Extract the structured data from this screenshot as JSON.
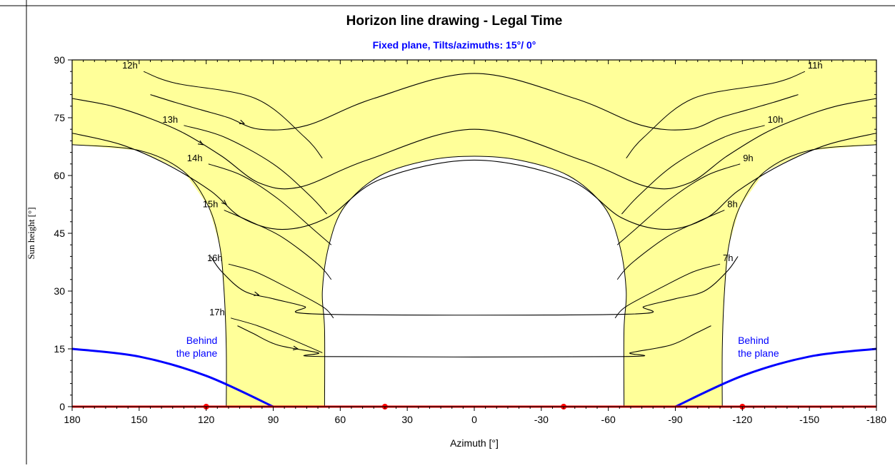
{
  "chart_data": {
    "type": "line",
    "title": "Horizon line drawing - Legal Time",
    "subtitle": "Fixed plane, Tilts/azimuths: 15°/ 0°",
    "xlabel": "Azimuth [°]",
    "ylabel": "Sun height [°]",
    "xlim": [
      180,
      -180
    ],
    "ylim": [
      0,
      90
    ],
    "x_ticks": [
      "180",
      "150",
      "120",
      "90",
      "60",
      "30",
      "0",
      "-30",
      "-60",
      "-90",
      "-120",
      "-150",
      "-180"
    ],
    "y_ticks": [
      "0",
      "15",
      "30",
      "45",
      "60",
      "75",
      "90"
    ],
    "grid": false,
    "colors": {
      "fill": "#ffff99",
      "paths": "#000000",
      "behind_plane": "#0000ff",
      "horizon": "#ff0000",
      "subtitle": "#0000ff"
    },
    "sun_paths": [
      {
        "x": [
          145,
          134,
          122,
          110,
          96,
          75,
          45,
          0,
          -45,
          -75,
          -96,
          -110,
          -122,
          -134,
          -145
        ],
        "y": [
          81,
          79,
          77,
          75,
          72,
          73,
          80,
          86.5,
          80,
          73,
          72,
          75,
          77,
          79,
          81
        ]
      },
      {
        "x": [
          180,
          162,
          146,
          130,
          113,
          96,
          78,
          48,
          0,
          -48,
          -78,
          -96,
          -113,
          -130,
          -146,
          -162,
          -180
        ],
        "y": [
          80,
          78,
          75,
          71,
          65,
          58,
          57,
          64,
          72,
          64,
          57,
          58,
          65,
          71,
          75,
          78,
          80
        ]
      },
      {
        "x": [
          180,
          158,
          138,
          118,
          104,
          86,
          66,
          42,
          0,
          -42,
          -66,
          -86,
          -104,
          -118,
          -138,
          -158,
          -180
        ],
        "y": [
          71,
          68,
          63,
          56,
          49,
          46,
          49,
          59,
          64,
          59,
          49,
          46,
          49,
          56,
          63,
          68,
          71
        ]
      },
      {
        "x": [
          118,
          113,
          103,
          90,
          76,
          68,
          -68,
          -76,
          -90,
          -103,
          -113,
          -118
        ],
        "y": [
          39,
          35,
          30,
          28,
          26,
          24,
          24,
          26,
          28,
          30,
          35,
          39
        ]
      },
      {
        "x": [
          106,
          99,
          88,
          70,
          66,
          -66,
          -70,
          -88,
          -99,
          -106
        ],
        "y": [
          21,
          19,
          16,
          14,
          13,
          13,
          14,
          16,
          19,
          21
        ]
      }
    ],
    "hour_lines": [
      {
        "label": "12h",
        "x": [
          148,
          134,
          98,
          76,
          68
        ],
        "y": [
          87,
          84,
          80,
          70,
          64.5
        ]
      },
      {
        "label": "13h",
        "x": [
          130,
          112,
          90,
          74,
          66
        ],
        "y": [
          73,
          70,
          63,
          55,
          50
        ]
      },
      {
        "label": "14h",
        "x": [
          119,
          104,
          88,
          72,
          64
        ],
        "y": [
          63,
          60,
          54,
          46,
          42
        ]
      },
      {
        "label": "15h",
        "x": [
          112,
          100,
          86,
          70,
          64
        ],
        "y": [
          51,
          48,
          44,
          37,
          33
        ]
      },
      {
        "label": "16h",
        "x": [
          110,
          98,
          84,
          68,
          63
        ],
        "y": [
          37,
          35,
          31,
          26,
          23
        ]
      },
      {
        "label": "17h",
        "x": [
          109,
          97,
          84,
          68
        ],
        "y": [
          23,
          21,
          18,
          14
        ]
      },
      {
        "label": "11h",
        "x": [
          -148,
          -134,
          -98,
          -76,
          -68
        ],
        "y": [
          87,
          84,
          80,
          70,
          64.5
        ]
      },
      {
        "label": "10h",
        "x": [
          -130,
          -112,
          -90,
          -74,
          -66
        ],
        "y": [
          73,
          70,
          63,
          55,
          50
        ]
      },
      {
        "label": "9h",
        "x": [
          -119,
          -104,
          -88,
          -72,
          -64
        ],
        "y": [
          63,
          60,
          54,
          46,
          42
        ]
      },
      {
        "label": "8h",
        "x": [
          -112,
          -100,
          -86,
          -70,
          -64
        ],
        "y": [
          51,
          48,
          44,
          37,
          33
        ]
      },
      {
        "label": "7h",
        "x": [
          -110,
          -98,
          -84,
          -68,
          -63
        ],
        "y": [
          37,
          35,
          31,
          26,
          23
        ]
      }
    ],
    "behind_plane": [
      {
        "label": "Behind\nthe plane",
        "x": [
          180,
          150,
          120,
          90
        ],
        "y": [
          15,
          13,
          8,
          0
        ]
      },
      {
        "label": "Behind\nthe plane",
        "x": [
          -180,
          -150,
          -120,
          -90
        ],
        "y": [
          15,
          13,
          8,
          0
        ]
      }
    ],
    "horizon_markers": [
      120,
      40,
      -40,
      -120
    ]
  }
}
